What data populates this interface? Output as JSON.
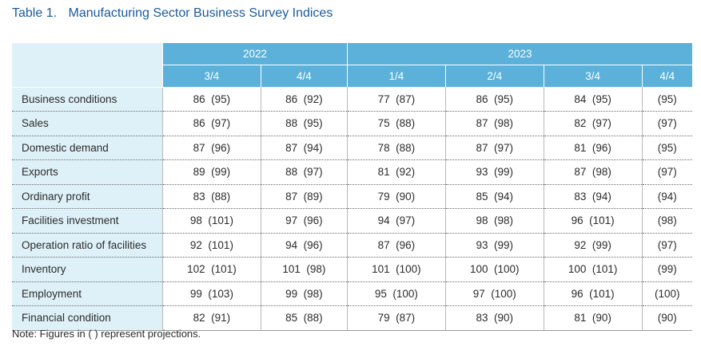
{
  "title": {
    "number": "Table 1.",
    "text": "Manufacturing Sector Business Survey Indices"
  },
  "header": {
    "years": [
      "2022",
      "2023"
    ],
    "quarters": [
      "3/4",
      "4/4",
      "1/4",
      "2/4",
      "3/4",
      "4/4"
    ]
  },
  "rows": [
    {
      "label": "Business conditions",
      "cells": [
        "86  (95)",
        "86  (92)",
        "77  (87)",
        "86  (95)",
        "84  (95)",
        "(95)"
      ]
    },
    {
      "label": "Sales",
      "cells": [
        "86  (97)",
        "88  (95)",
        "75  (88)",
        "87  (98)",
        "82  (97)",
        "(97)"
      ]
    },
    {
      "label": "Domestic demand",
      "cells": [
        "87  (96)",
        "87  (94)",
        "78  (88)",
        "87  (97)",
        "81  (96)",
        "(95)"
      ]
    },
    {
      "label": "Exports",
      "cells": [
        "89  (99)",
        "88  (97)",
        "81  (92)",
        "93  (99)",
        "87  (98)",
        "(97)"
      ]
    },
    {
      "label": "Ordinary profit",
      "cells": [
        "83  (88)",
        "87  (89)",
        "79  (90)",
        "85  (94)",
        "83  (94)",
        "(94)"
      ]
    },
    {
      "label": "Facilities investment",
      "cells": [
        "98  (101)",
        "97  (96)",
        "94  (97)",
        "98  (98)",
        "96  (101)",
        "(98)"
      ]
    },
    {
      "label": "Operation ratio of facilities",
      "cells": [
        "92  (101)",
        "94  (96)",
        "87  (96)",
        "93  (99)",
        "92  (99)",
        "(97)"
      ]
    },
    {
      "label": "Inventory",
      "cells": [
        "102  (101)",
        "101  (98)",
        "101  (100)",
        "100  (100)",
        "100  (101)",
        "(99)"
      ]
    },
    {
      "label": "Employment",
      "cells": [
        "99  (103)",
        "99  (98)",
        "95  (100)",
        "97  (100)",
        "96  (101)",
        "(100)"
      ]
    },
    {
      "label": "Financial condition",
      "cells": [
        "82  (91)",
        "85  (88)",
        "79  (87)",
        "83  (90)",
        "81  (90)",
        "(90)"
      ]
    }
  ],
  "note": "Note: Figures in (   ) represent projections."
}
